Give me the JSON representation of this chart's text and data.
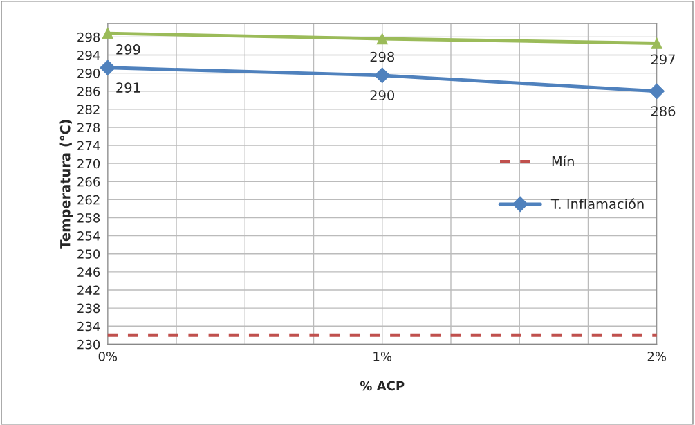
{
  "chart_data": {
    "type": "line",
    "xlabel": "% ACP",
    "ylabel": "Temperatura (°C)",
    "x": [
      0,
      1,
      2
    ],
    "xlim": [
      0,
      2
    ],
    "xticks": [
      {
        "value": 0,
        "label": "0%"
      },
      {
        "value": 0.25,
        "label": null
      },
      {
        "value": 0.5,
        "label": null
      },
      {
        "value": 0.75,
        "label": null
      },
      {
        "value": 1,
        "label": "1%"
      },
      {
        "value": 1.25,
        "label": null
      },
      {
        "value": 1.5,
        "label": null
      },
      {
        "value": 1.75,
        "label": null
      },
      {
        "value": 2,
        "label": "2%"
      }
    ],
    "ylim": [
      230,
      301
    ],
    "yticks": [
      230,
      234,
      238,
      242,
      246,
      250,
      254,
      258,
      262,
      266,
      270,
      274,
      278,
      282,
      286,
      290,
      294,
      298
    ],
    "grid": true,
    "legend": "right",
    "series": [
      {
        "color": "#9bbb59",
        "values": [
          298.8,
          297.6,
          296.6
        ],
        "marker": "triangle",
        "line_style": "solid",
        "value_labels": [
          "299",
          "298",
          "297"
        ]
      },
      {
        "name": "Mín",
        "color": "#c0504d",
        "values": [
          232,
          232,
          232
        ],
        "marker": "none",
        "line_style": "dashed"
      },
      {
        "name": "T. Inflamación",
        "color": "#4f81bd",
        "values": [
          291.2,
          289.5,
          286
        ],
        "marker": "diamond",
        "line_style": "solid",
        "value_labels": [
          "291",
          "290",
          "286"
        ]
      }
    ]
  }
}
